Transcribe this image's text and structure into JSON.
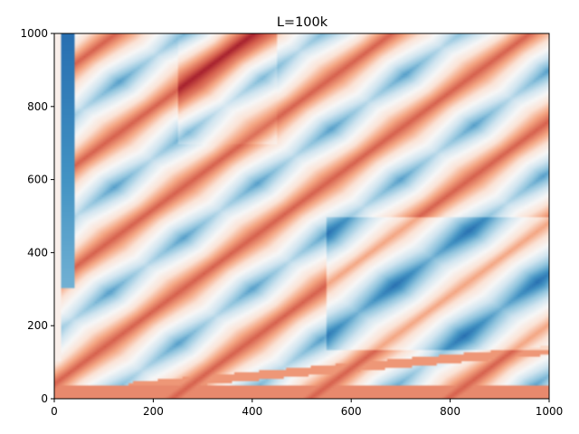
{
  "chart_data": {
    "type": "heatmap",
    "title": "L=100k",
    "xlabel": "",
    "ylabel": "",
    "xlim": [
      0,
      1000
    ],
    "ylim": [
      0,
      1000
    ],
    "x_ticks": [
      0,
      200,
      400,
      600,
      800,
      1000
    ],
    "y_ticks": [
      0,
      200,
      400,
      600,
      800,
      1000
    ],
    "colormap": "RdBu_r",
    "colors": {
      "dark_red": "#9b1026",
      "red": "#d6604d",
      "light_red": "#f4a582",
      "pale_red": "#fbe3d6",
      "white": "#f7f7f7",
      "pale_blue": "#d1e5f0",
      "light_blue": "#92c5de",
      "blue": "#4393c3",
      "dark_blue": "#2166ac"
    },
    "features": [
      {
        "kind": "diagonal-ridge",
        "description": "red diagonal bands of slope ~1 spaced ~280 units apart",
        "value": 0.7
      },
      {
        "kind": "blue-lobes",
        "description": "light blue diamond-shaped regions between ridges",
        "value": -0.35
      },
      {
        "kind": "left-column",
        "description": "dark blue vertical stripe near x=20-40, y>300",
        "value": -0.95
      },
      {
        "kind": "bottom-band",
        "description": "red band along y<40 and a thin red wedge from (150,30) to (1000,130)",
        "value": 0.6
      }
    ],
    "grid": false,
    "legend": "none"
  }
}
